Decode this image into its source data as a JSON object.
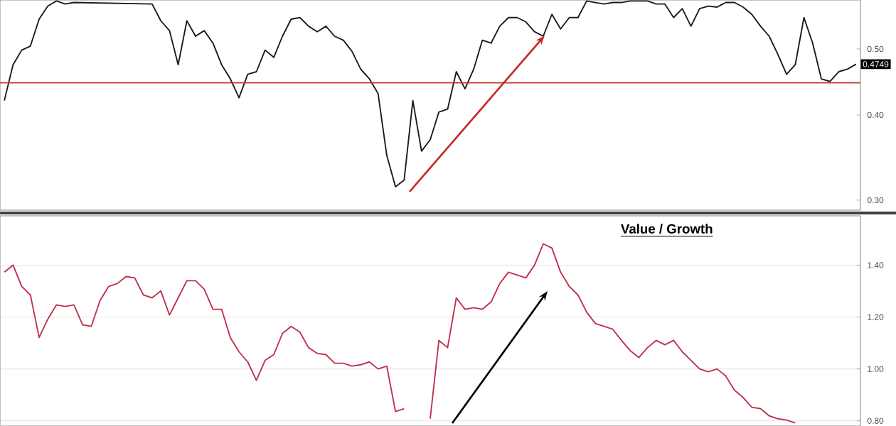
{
  "chart_data": [
    {
      "type": "line",
      "log": "y",
      "tick_labels": "y",
      "color": "#1a1a1a",
      "ylim": [
        0.29,
        0.59
      ],
      "yticks": [
        {
          "value": 0.3,
          "label": "0.30"
        },
        {
          "value": 0.4,
          "label": "0.40"
        },
        {
          "value": 0.5,
          "label": "0.50"
        }
      ],
      "ref_lines": [
        {
          "axis": "y",
          "value": 0.446,
          "color": "#c0392b"
        }
      ],
      "annotations": [
        {
          "text": "0.4749",
          "y": 0.4749
        }
      ],
      "categories": [
        null,
        null,
        null,
        null,
        null,
        null,
        null,
        null,
        null,
        null,
        null,
        null,
        null,
        null,
        null,
        null,
        null,
        null,
        null,
        null,
        null,
        null,
        null,
        null,
        null,
        null,
        null,
        null,
        null,
        null,
        null,
        null,
        null,
        null,
        null,
        null,
        null,
        null,
        null,
        null,
        null,
        null,
        null,
        null,
        null,
        null,
        null,
        null,
        null,
        null,
        null,
        null,
        null,
        null,
        null,
        null,
        null,
        null,
        null,
        null,
        null,
        null,
        null,
        null,
        null,
        null,
        null,
        null,
        null,
        null,
        null,
        null,
        null,
        null,
        null,
        null,
        null,
        null,
        null,
        null,
        null,
        null,
        null,
        null,
        null,
        null,
        null,
        null,
        null,
        null,
        null,
        null,
        null,
        null,
        null,
        null,
        null,
        null,
        null
      ],
      "values": [
        0.42,
        0.474,
        0.498,
        0.505,
        0.553,
        0.578,
        0.588,
        0.582,
        0.585,
        null,
        null,
        null,
        null,
        null,
        null,
        null,
        null,
        0.582,
        0.55,
        0.532,
        0.474,
        0.55,
        0.522,
        0.532,
        0.51,
        0.474,
        0.452,
        0.424,
        0.459,
        0.463,
        0.498,
        0.486,
        0.522,
        0.553,
        0.556,
        0.54,
        0.53,
        0.54,
        0.522,
        0.515,
        0.496,
        0.467,
        0.452,
        0.43,
        0.349,
        0.314,
        0.321,
        0.42,
        0.354,
        0.368,
        0.404,
        0.408,
        0.463,
        0.437,
        0.467,
        0.515,
        0.51,
        0.54,
        0.556,
        0.556,
        0.548,
        0.53,
        0.522,
        0.562,
        0.535,
        0.556,
        0.556,
        0.588,
        0.585,
        0.582,
        0.585,
        0.585,
        0.588,
        0.588,
        0.588,
        0.582,
        0.582,
        0.556,
        0.573,
        0.54,
        0.573,
        0.578,
        0.576,
        0.585,
        0.585,
        0.576,
        0.562,
        0.54,
        0.522,
        0.491,
        0.459,
        0.474,
        0.556,
        0.51,
        0.452,
        0.448,
        0.463,
        0.467,
        0.4749
      ]
    },
    {
      "type": "line",
      "title": "Value / Growth",
      "grid": "y",
      "tick_labels": "y",
      "color": "#c0304a",
      "ylim": [
        0.78,
        1.59
      ],
      "yticks": [
        {
          "value": 0.8,
          "label": "0.80"
        },
        {
          "value": 1.0,
          "label": "1.00"
        },
        {
          "value": 1.2,
          "label": "1.20"
        },
        {
          "value": 1.4,
          "label": "1.40"
        }
      ],
      "categories": [
        null,
        null,
        null,
        null,
        null,
        null,
        null,
        null,
        null,
        null,
        null,
        null,
        null,
        null,
        null,
        null,
        null,
        null,
        null,
        null,
        null,
        null,
        null,
        null,
        null,
        null,
        null,
        null,
        null,
        null,
        null,
        null,
        null,
        null,
        null,
        null,
        null,
        null,
        null,
        null,
        null,
        null,
        null,
        null,
        null,
        null,
        null,
        null,
        null,
        null,
        null,
        null,
        null,
        null,
        null,
        null,
        null,
        null,
        null,
        null,
        null,
        null,
        null,
        null,
        null,
        null,
        null,
        null,
        null,
        null,
        null,
        null,
        null,
        null,
        null,
        null,
        null,
        null,
        null,
        null,
        null,
        null,
        null,
        null,
        null,
        null,
        null,
        null,
        null,
        null,
        null,
        null,
        null,
        null,
        null,
        null,
        null,
        null,
        null
      ],
      "values": [
        1.373,
        1.4,
        1.318,
        1.285,
        1.121,
        1.192,
        1.247,
        1.241,
        1.247,
        1.17,
        1.164,
        1.263,
        1.318,
        1.329,
        1.356,
        1.351,
        1.285,
        1.274,
        1.301,
        1.208,
        1.274,
        1.34,
        1.34,
        1.307,
        1.23,
        1.23,
        1.121,
        1.066,
        1.027,
        0.956,
        1.033,
        1.055,
        1.137,
        1.164,
        1.142,
        1.082,
        1.06,
        1.055,
        1.022,
        1.022,
        1.011,
        1.016,
        1.027,
        1.0,
        1.011,
        0.836,
        0.847,
        null,
        null,
        0.808,
        1.11,
        1.082,
        1.274,
        1.23,
        1.236,
        1.23,
        1.258,
        1.329,
        1.373,
        1.362,
        1.351,
        1.4,
        1.482,
        1.466,
        1.373,
        1.318,
        1.285,
        1.219,
        1.175,
        1.164,
        1.153,
        1.11,
        1.071,
        1.044,
        1.082,
        1.11,
        1.093,
        1.11,
        1.066,
        1.033,
        1.0,
        0.989,
        1.0,
        0.973,
        0.918,
        0.89,
        0.852,
        0.847,
        0.819,
        0.808,
        0.803,
        0.792,
        null,
        null,
        null,
        null,
        null,
        null,
        null
      ]
    }
  ]
}
